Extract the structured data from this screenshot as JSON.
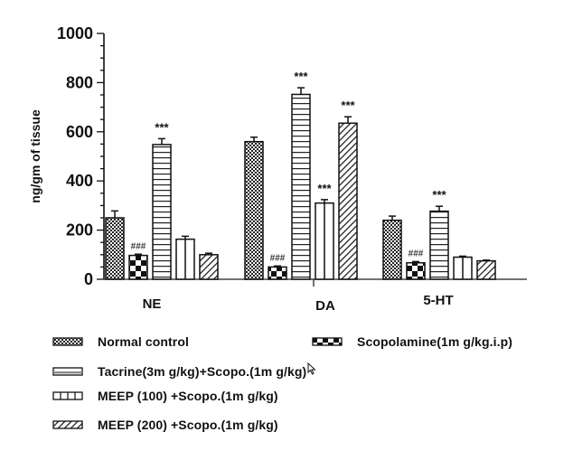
{
  "chart_data": {
    "type": "bar",
    "title": "",
    "xlabel": "",
    "ylabel": "ng/gm of tissue",
    "ylim": [
      0,
      1000
    ],
    "yticks": [
      "0",
      "200",
      "400",
      "600",
      "800",
      "1000"
    ],
    "ytick_values": [
      0,
      200,
      400,
      600,
      800,
      1000
    ],
    "minor_tick_step": 50,
    "grid": false,
    "categories": [
      "NE",
      "DA",
      "5-HT"
    ],
    "series": [
      {
        "name": "Normal control",
        "pattern": "checker-fine",
        "values": [
          250,
          560,
          240
        ],
        "errors": [
          28,
          18,
          17
        ],
        "annotations": [
          "",
          "",
          ""
        ]
      },
      {
        "name": "Scopolamine(1m g/kg.i.p)",
        "pattern": "checker-coarse",
        "values": [
          97,
          50,
          67
        ],
        "errors": [
          5,
          4,
          5
        ],
        "annotations": [
          "###",
          "###",
          "###"
        ]
      },
      {
        "name": "Tacrine(3m g/kg)+Scopo.(1m g/kg)",
        "pattern": "horizontal",
        "values": [
          548,
          752,
          277
        ],
        "errors": [
          24,
          27,
          20
        ],
        "annotations": [
          "***",
          "***",
          "***"
        ]
      },
      {
        "name": "MEEP (100) +Scopo.(1m g/kg)",
        "pattern": "vertical",
        "values": [
          163,
          310,
          90
        ],
        "errors": [
          12,
          14,
          4
        ],
        "annotations": [
          "",
          "***",
          ""
        ]
      },
      {
        "name": "MEEP (200) +Scopo.(1m g/kg)",
        "pattern": "diagonal",
        "values": [
          100,
          635,
          75
        ],
        "errors": [
          6,
          26,
          3
        ],
        "annotations": [
          "",
          "***",
          ""
        ]
      }
    ],
    "legend_position": "bottom"
  },
  "legend": [
    {
      "label": "Normal control"
    },
    {
      "label": "Scopolamine(1m g/kg.i.p)"
    },
    {
      "label": "Tacrine(3m g/kg)+Scopo.(1m g/kg)"
    },
    {
      "label": "MEEP (100) +Scopo.(1m g/kg)"
    },
    {
      "label": "MEEP (200) +Scopo.(1m g/kg)"
    }
  ],
  "colors": {
    "ink": "#111111",
    "background": "#ffffff"
  }
}
